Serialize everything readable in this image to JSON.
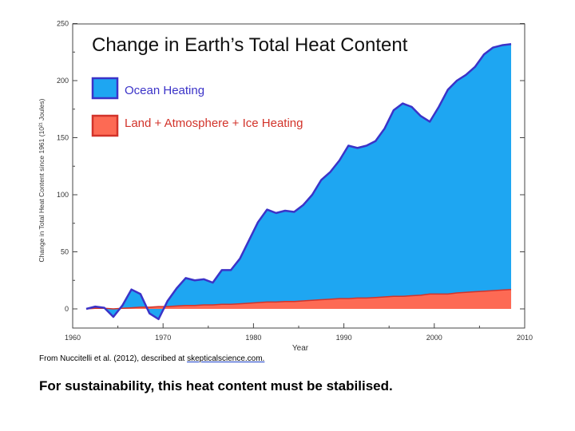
{
  "chart_data": {
    "type": "area",
    "title": "Change in Earth’s Total Heat Content",
    "xlabel": "Year",
    "ylabel": "Change in Total Heat Content since 1961 (10²¹ Joules)",
    "xlim": [
      1960,
      2010
    ],
    "ylim": [
      -10,
      250
    ],
    "xticks": [
      "1960",
      "1970",
      "1980",
      "1990",
      "2000",
      "2010"
    ],
    "yticks": [
      "0",
      "50",
      "100",
      "150",
      "200",
      "250"
    ],
    "legend_position": "top-left",
    "grid": false,
    "series": [
      {
        "name": "Ocean Heating",
        "color": "#1ea6f2",
        "stroke": "#3b33c8",
        "stacked_total": true,
        "x": [
          1961.5,
          1962.5,
          1963.5,
          1964.5,
          1965.5,
          1966.5,
          1967.5,
          1968.5,
          1969.5,
          1970.5,
          1971.5,
          1972.5,
          1973.5,
          1974.5,
          1975.5,
          1976.5,
          1977.5,
          1978.5,
          1979.5,
          1980.5,
          1981.5,
          1982.5,
          1983.5,
          1984.5,
          1985.5,
          1986.5,
          1987.5,
          1988.5,
          1989.5,
          1990.5,
          1991.5,
          1992.5,
          1993.5,
          1994.5,
          1995.5,
          1996.5,
          1997.5,
          1998.5,
          1999.5,
          2000.5,
          2001.5,
          2002.5,
          2003.5,
          2004.5,
          2005.5,
          2006.5,
          2007.5,
          2008.5
        ],
        "values": [
          0,
          2,
          1,
          -7,
          3,
          17,
          13,
          -4,
          -9,
          7,
          18,
          27,
          25,
          26,
          23,
          34,
          34,
          44,
          60,
          76,
          87,
          84,
          86,
          85,
          91,
          100,
          113,
          120,
          130,
          143,
          141,
          143,
          147,
          158,
          174,
          180,
          177,
          169,
          164,
          177,
          192,
          200,
          205,
          212,
          223,
          229,
          231,
          232
        ]
      },
      {
        "name": "Land + Atmosphere + Ice Heating",
        "color": "#fd6a54",
        "stroke": "#d2332a",
        "x": [
          1961.5,
          1962.5,
          1963.5,
          1964.5,
          1965.5,
          1966.5,
          1967.5,
          1968.5,
          1969.5,
          1970.5,
          1971.5,
          1972.5,
          1973.5,
          1974.5,
          1975.5,
          1976.5,
          1977.5,
          1978.5,
          1979.5,
          1980.5,
          1981.5,
          1982.5,
          1983.5,
          1984.5,
          1985.5,
          1986.5,
          1987.5,
          1988.5,
          1989.5,
          1990.5,
          1991.5,
          1992.5,
          1993.5,
          1994.5,
          1995.5,
          1996.5,
          1997.5,
          1998.5,
          1999.5,
          2000.5,
          2001.5,
          2002.5,
          2003.5,
          2004.5,
          2005.5,
          2006.5,
          2007.5,
          2008.5
        ],
        "values": [
          0,
          0.5,
          0.5,
          0,
          0.5,
          1,
          1.5,
          1.5,
          2,
          2,
          2.5,
          3,
          3,
          3.5,
          3.5,
          4,
          4,
          4.5,
          5,
          5.5,
          6,
          6,
          6.5,
          6.5,
          7,
          7.5,
          8,
          8.5,
          9,
          9,
          9.5,
          9.5,
          10,
          10.5,
          11,
          11,
          11.5,
          12,
          13,
          13,
          13,
          14,
          14.5,
          15,
          15.5,
          16,
          16.5,
          17
        ]
      }
    ]
  },
  "caption": {
    "prefix": "From Nuccitelli et al. (2012), described at ",
    "link": "skepticalscience.com."
  },
  "note": "For sustainability, this heat content must be stabilised."
}
